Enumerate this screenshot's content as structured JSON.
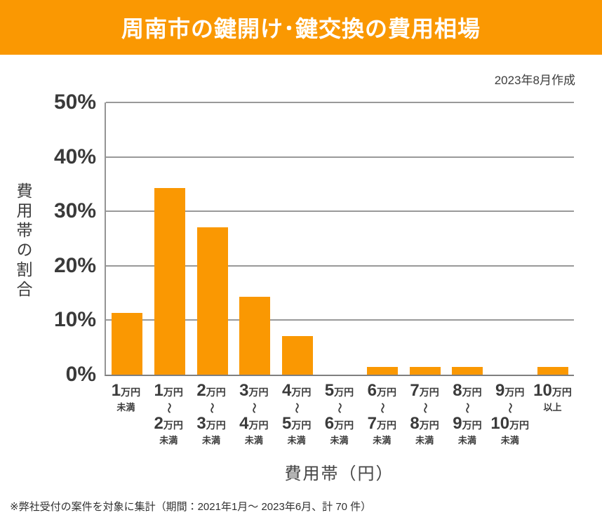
{
  "header": {
    "title": "周南市の鍵開け･鍵交換の費用相場",
    "bg_color": "#fa9802"
  },
  "meta": {
    "created": "2023年8月作成"
  },
  "chart_data": {
    "type": "bar",
    "title": "周南市の鍵開け･鍵交換の費用相場",
    "categories": [
      [
        "1万円",
        "未満"
      ],
      [
        "1万円",
        "〜",
        "2万円",
        "未満"
      ],
      [
        "2万円",
        "〜",
        "3万円",
        "未満"
      ],
      [
        "3万円",
        "〜",
        "4万円",
        "未満"
      ],
      [
        "4万円",
        "〜",
        "5万円",
        "未満"
      ],
      [
        "5万円",
        "〜",
        "6万円",
        "未満"
      ],
      [
        "6万円",
        "〜",
        "7万円",
        "未満"
      ],
      [
        "7万円",
        "〜",
        "8万円",
        "未満"
      ],
      [
        "8万円",
        "〜",
        "9万円",
        "未満"
      ],
      [
        "9万円",
        "〜",
        "10万円",
        "未満"
      ],
      [
        "10万円",
        "以上"
      ]
    ],
    "values": [
      11.4,
      34.3,
      27.1,
      14.3,
      7.1,
      0,
      1.4,
      1.4,
      1.4,
      0,
      1.4
    ],
    "unit": "%",
    "ylabel": "費用帯の割合",
    "xlabel": "費用帯（円）",
    "ylim": [
      0,
      50
    ],
    "yticks": [
      50,
      40,
      30,
      20,
      10,
      0
    ],
    "bar_color": "#fa9802",
    "grid": "horizontal",
    "legend": "none"
  },
  "footnote": {
    "text": "※弊社受付の案件を対象に集計（期間：2021年1月～ 2023年6月、計 70 件）"
  }
}
